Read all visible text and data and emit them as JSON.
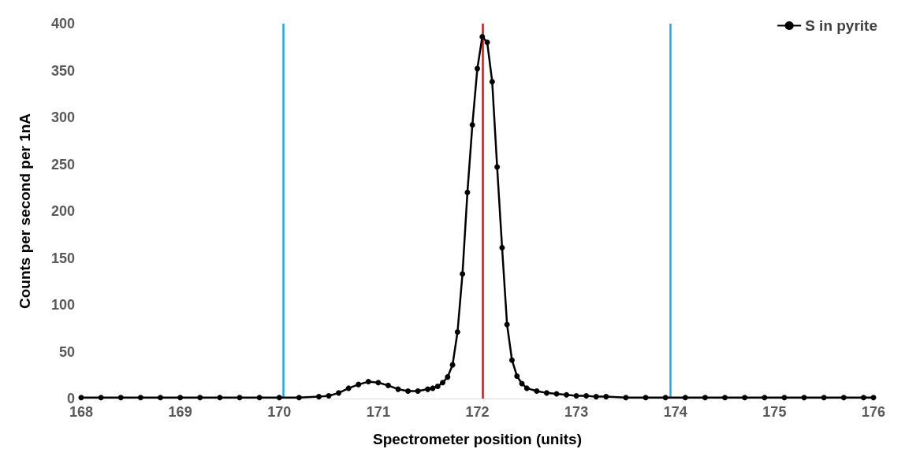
{
  "chart_data": {
    "type": "line",
    "xlabel": "Spectrometer position (units)",
    "ylabel": "Counts per second per 1nA",
    "xlim": [
      168,
      176
    ],
    "xticks": [
      168,
      169,
      170,
      171,
      172,
      173,
      174,
      175,
      176
    ],
    "ylim": [
      0,
      400
    ],
    "yticks": [
      0,
      50,
      100,
      150,
      200,
      250,
      300,
      350,
      400
    ],
    "grid": false,
    "legend": "top right",
    "marker": "circle",
    "line_style": "solid",
    "ref_lines": [
      {
        "axis": "x",
        "value": 170.04,
        "label": null,
        "color": "#1fa9e1"
      },
      {
        "axis": "x",
        "value": 173.95,
        "label": null,
        "color": "#1fa9e1"
      },
      {
        "axis": "x",
        "value": 172.05,
        "label": null,
        "color": "#ff0000"
      }
    ],
    "series": [
      {
        "name": "S in pyrite",
        "color": "#000000",
        "x": [
          168,
          168.2,
          168.4,
          168.6,
          168.8,
          169,
          169.2,
          169.4,
          169.6,
          169.8,
          170,
          170.2,
          170.4,
          170.5,
          170.6,
          170.7,
          170.8,
          170.9,
          171,
          171.1,
          171.2,
          171.3,
          171.4,
          171.5,
          171.55,
          171.6,
          171.65,
          171.7,
          171.75,
          171.8,
          171.85,
          171.9,
          171.95,
          172,
          172.05,
          172.1,
          172.15,
          172.2,
          172.25,
          172.3,
          172.35,
          172.4,
          172.45,
          172.5,
          172.6,
          172.7,
          172.8,
          172.9,
          173,
          173.1,
          173.2,
          173.3,
          173.5,
          173.7,
          173.9,
          174.1,
          174.3,
          174.5,
          174.7,
          174.9,
          175.1,
          175.3,
          175.5,
          175.7,
          175.9,
          176
        ],
        "values": [
          1,
          1,
          1,
          1,
          1,
          1,
          1,
          1,
          1,
          1,
          1,
          1,
          2,
          3,
          6,
          11,
          15,
          18,
          17,
          14,
          10,
          8,
          8,
          10,
          11,
          13,
          17,
          23,
          36,
          71,
          133,
          220,
          292,
          352,
          386,
          380,
          338,
          247,
          161,
          79,
          41,
          24,
          16,
          11,
          8,
          6,
          5,
          4,
          3,
          3,
          2,
          2,
          1,
          1,
          1,
          1,
          1,
          1,
          1,
          1,
          1,
          1,
          1,
          1,
          1,
          1
        ]
      }
    ]
  }
}
